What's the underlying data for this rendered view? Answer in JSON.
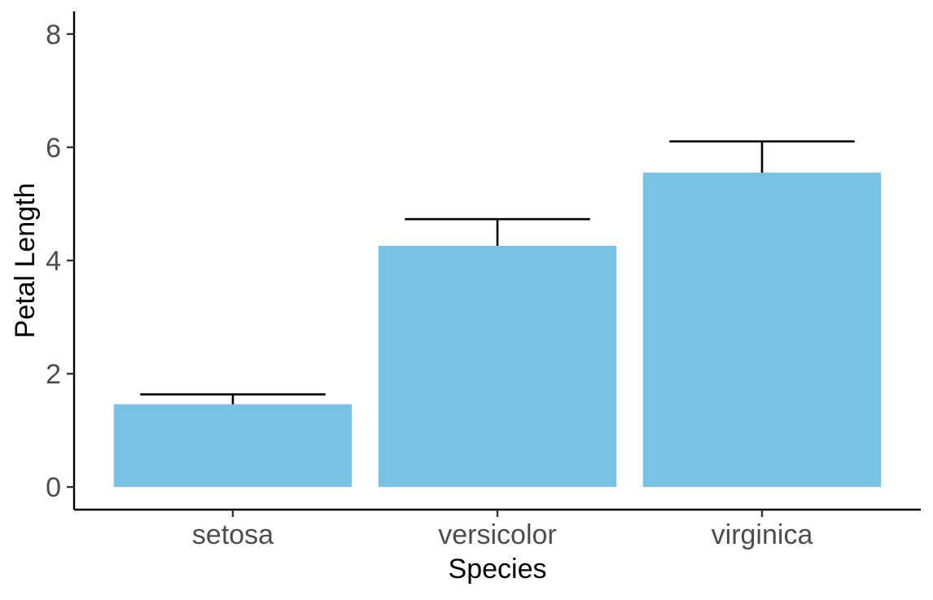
{
  "chart_data": {
    "type": "bar",
    "title": "",
    "xlabel": "Species",
    "ylabel": "Petal Length",
    "categories": [
      "setosa",
      "versicolor",
      "virginica"
    ],
    "values": [
      1.462,
      4.26,
      5.552
    ],
    "errors": [
      0.174,
      0.47,
      0.552
    ],
    "ylim": [
      -0.4,
      8.4
    ],
    "yticks": [
      0,
      2,
      4,
      6,
      8
    ],
    "ytick_labels": [
      "0",
      "2",
      "4",
      "6",
      "8"
    ],
    "bar_color": "#78C2E4",
    "error_color": "#000000",
    "grid": false,
    "legend": "none"
  }
}
